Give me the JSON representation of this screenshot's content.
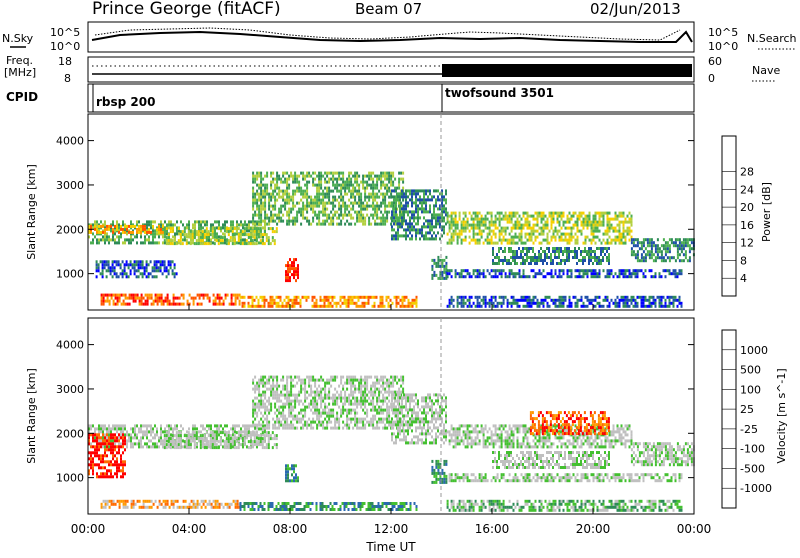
{
  "header": {
    "station": "Prince George (fitACF)",
    "beam": "Beam 07",
    "date": "02/Jun/2013"
  },
  "noise_panel": {
    "left_label": "N.Sky",
    "right_label": "N.Search",
    "left_ticks": [
      "10^5",
      "10^0"
    ],
    "right_ticks": [
      "10^5",
      "10^0"
    ]
  },
  "freq_panel": {
    "left_label_line1": "Freq.",
    "left_label_line2": "[MHz]",
    "right_label": "Nave",
    "left_ticks": [
      "18",
      "8"
    ],
    "right_ticks": [
      "60",
      "0"
    ]
  },
  "cpid_panel": {
    "label": "CPID",
    "modes": [
      {
        "name": "rbsp 200",
        "start_hour": 0
      },
      {
        "name": "twofsound 3501",
        "start_hour": 14
      }
    ]
  },
  "colors": {
    "power": [
      "#0000ff",
      "#1e4fa8",
      "#2e8b57",
      "#4caf50",
      "#b2cf3e",
      "#f5d000",
      "#ff9a00",
      "#ff5500",
      "#ff0000"
    ],
    "velocity": [
      "#1f1fd0",
      "#2a6ab0",
      "#2e8b57",
      "#44c030",
      "#c0c0c0",
      "#c0c0c0",
      "#ff9a00",
      "#ff6a00",
      "#ff0000"
    ]
  },
  "chart_data": [
    {
      "type": "heatmap",
      "name": "power",
      "xlabel": "",
      "ylabel": "Slant Range [km]",
      "xlim": [
        0,
        24
      ],
      "ylim": [
        180,
        4600
      ],
      "yticks": [
        "1000",
        "2000",
        "3000",
        "4000"
      ],
      "colorbar_label": "Power [dB]",
      "colorbar_ticks": [
        "4",
        "8",
        "12",
        "16",
        "20",
        "24",
        "28"
      ],
      "bands": [
        {
          "t0": 0.0,
          "t1": 7.0,
          "r0": 1700,
          "r1": 2200,
          "level": 3
        },
        {
          "t0": 0.0,
          "t1": 3.0,
          "r0": 1900,
          "r1": 2100,
          "level": 6
        },
        {
          "t0": 3.0,
          "t1": 7.5,
          "r0": 1650,
          "r1": 2050,
          "level": 4
        },
        {
          "t0": 6.5,
          "t1": 12.5,
          "r0": 2100,
          "r1": 3300,
          "level": 3
        },
        {
          "t0": 12.0,
          "t1": 14.2,
          "r0": 1800,
          "r1": 2900,
          "level": 2
        },
        {
          "t0": 0.3,
          "t1": 3.5,
          "r0": 900,
          "r1": 1300,
          "level": 1
        },
        {
          "t0": 7.8,
          "t1": 8.3,
          "r0": 850,
          "r1": 1350,
          "level": 8
        },
        {
          "t0": 13.6,
          "t1": 14.2,
          "r0": 900,
          "r1": 1400,
          "level": 2
        },
        {
          "t0": 0.5,
          "t1": 6.0,
          "r0": 300,
          "r1": 550,
          "level": 7
        },
        {
          "t0": 6.0,
          "t1": 13.0,
          "r0": 250,
          "r1": 500,
          "level": 6
        },
        {
          "t0": 14.2,
          "t1": 21.5,
          "r0": 1700,
          "r1": 2400,
          "level": 4
        },
        {
          "t0": 16.0,
          "t1": 20.6,
          "r0": 1200,
          "r1": 1600,
          "level": 2
        },
        {
          "t0": 14.2,
          "t1": 23.5,
          "r0": 900,
          "r1": 1100,
          "level": 1
        },
        {
          "t0": 14.2,
          "t1": 23.5,
          "r0": 250,
          "r1": 500,
          "level": 1
        },
        {
          "t0": 21.5,
          "t1": 24.0,
          "r0": 1300,
          "r1": 1800,
          "level": 2
        }
      ]
    },
    {
      "type": "heatmap",
      "name": "velocity",
      "xlabel": "Time UT",
      "ylabel": "Slant Range [km]",
      "xlim": [
        0,
        24
      ],
      "ylim": [
        180,
        4600
      ],
      "xticks": [
        "00:00",
        "04:00",
        "08:00",
        "12:00",
        "16:00",
        "20:00",
        "00:00"
      ],
      "yticks": [
        "1000",
        "2000",
        "3000",
        "4000"
      ],
      "colorbar_label": "Velocity [m s^-1]",
      "colorbar_ticks": [
        "1000",
        "500",
        "100",
        "25",
        "-25",
        "-100",
        "-500",
        "-1000"
      ],
      "bands": [
        {
          "t0": 0.0,
          "t1": 7.0,
          "r0": 1700,
          "r1": 2200,
          "level": 4
        },
        {
          "t0": 0.0,
          "t1": 1.5,
          "r0": 1000,
          "r1": 2000,
          "level": 8
        },
        {
          "t0": 3.0,
          "t1": 7.5,
          "r0": 1650,
          "r1": 2050,
          "level": 4
        },
        {
          "t0": 6.5,
          "t1": 12.5,
          "r0": 2100,
          "r1": 3300,
          "level": 4
        },
        {
          "t0": 12.0,
          "t1": 14.2,
          "r0": 1800,
          "r1": 2900,
          "level": 4
        },
        {
          "t0": 7.8,
          "t1": 8.3,
          "r0": 900,
          "r1": 1300,
          "level": 2
        },
        {
          "t0": 13.6,
          "t1": 14.2,
          "r0": 900,
          "r1": 1400,
          "level": 2
        },
        {
          "t0": 0.5,
          "t1": 6.0,
          "r0": 300,
          "r1": 500,
          "level": 6
        },
        {
          "t0": 6.0,
          "t1": 13.0,
          "r0": 250,
          "r1": 450,
          "level": 2
        },
        {
          "t0": 14.2,
          "t1": 21.5,
          "r0": 1700,
          "r1": 2200,
          "level": 4
        },
        {
          "t0": 17.5,
          "t1": 20.6,
          "r0": 2000,
          "r1": 2500,
          "level": 7
        },
        {
          "t0": 16.0,
          "t1": 20.6,
          "r0": 1200,
          "r1": 1600,
          "level": 4
        },
        {
          "t0": 14.2,
          "t1": 23.5,
          "r0": 900,
          "r1": 1100,
          "level": 4
        },
        {
          "t0": 14.2,
          "t1": 23.5,
          "r0": 250,
          "r1": 500,
          "level": 3
        },
        {
          "t0": 21.5,
          "t1": 24.0,
          "r0": 1300,
          "r1": 1800,
          "level": 4
        }
      ]
    }
  ]
}
